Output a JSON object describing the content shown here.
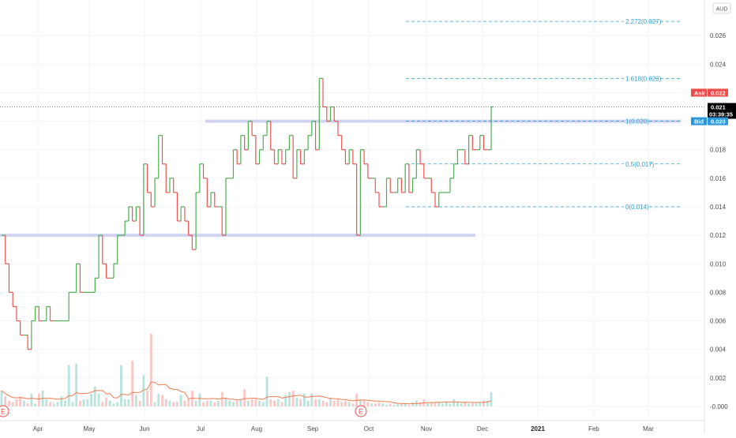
{
  "currency": "AUD",
  "colors": {
    "up": "#4caf50",
    "down": "#ef5350",
    "fib": "#2a9fd6",
    "support": "#c9cdf0",
    "ask": "#ef4b4b",
    "bid": "#2c96dd",
    "last": "#000000",
    "volume_up": "#a8dcd4",
    "volume_down": "#f7b9b7",
    "volume_ma": "#f07c4f",
    "grid": "#f1f3f6"
  },
  "price_tags": {
    "ask_label": "Ask",
    "ask_value": "0.022",
    "last_value": "0.021",
    "countdown": "03:39:35",
    "bid_label": "Bid",
    "bid_value": "0.020"
  },
  "earnings_marker": "E",
  "chart_data": {
    "type": "step-line",
    "ylim": [
      -0.001,
      0.0285
    ],
    "y_ticks": [
      "0.026",
      "0.024",
      "0.022",
      "0.020",
      "0.018",
      "0.016",
      "0.014",
      "0.012",
      "0.010",
      "0.008",
      "0.006",
      "0.004",
      "0.002",
      "-0.000"
    ],
    "x_labels": [
      {
        "label": "Apr",
        "year": false
      },
      {
        "label": "May",
        "year": false
      },
      {
        "label": "Jun",
        "year": false
      },
      {
        "label": "Jul",
        "year": false
      },
      {
        "label": "Aug",
        "year": false
      },
      {
        "label": "Sep",
        "year": false
      },
      {
        "label": "Oct",
        "year": false
      },
      {
        "label": "Nov",
        "year": false
      },
      {
        "label": "Dec",
        "year": false
      },
      {
        "label": "2021",
        "year": true
      },
      {
        "label": "Feb",
        "year": false
      },
      {
        "label": "Mar",
        "year": false
      }
    ],
    "price_series": [
      0.012,
      0.01,
      0.008,
      0.007,
      0.006,
      0.005,
      0.005,
      0.004,
      0.006,
      0.007,
      0.006,
      0.006,
      0.007,
      0.006,
      0.006,
      0.006,
      0.006,
      0.006,
      0.008,
      0.008,
      0.01,
      0.008,
      0.008,
      0.008,
      0.008,
      0.009,
      0.012,
      0.01,
      0.009,
      0.009,
      0.01,
      0.012,
      0.012,
      0.013,
      0.014,
      0.013,
      0.014,
      0.012,
      0.017,
      0.015,
      0.014,
      0.016,
      0.019,
      0.017,
      0.015,
      0.016,
      0.015,
      0.013,
      0.014,
      0.013,
      0.012,
      0.011,
      0.015,
      0.017,
      0.016,
      0.014,
      0.015,
      0.014,
      0.014,
      0.012,
      0.016,
      0.016,
      0.018,
      0.017,
      0.019,
      0.018,
      0.02,
      0.019,
      0.017,
      0.018,
      0.019,
      0.02,
      0.018,
      0.017,
      0.018,
      0.017,
      0.018,
      0.019,
      0.016,
      0.018,
      0.017,
      0.018,
      0.019,
      0.02,
      0.018,
      0.023,
      0.021,
      0.02,
      0.021,
      0.02,
      0.019,
      0.018,
      0.017,
      0.018,
      0.017,
      0.012,
      0.018,
      0.017,
      0.016,
      0.016,
      0.015,
      0.014,
      0.014,
      0.016,
      0.015,
      0.015,
      0.016,
      0.015,
      0.017,
      0.015,
      0.016,
      0.018,
      0.017,
      0.016,
      0.016,
      0.015,
      0.014,
      0.015,
      0.015,
      0.015,
      0.016,
      0.017,
      0.018,
      0.018,
      0.017,
      0.019,
      0.018,
      0.018,
      0.019,
      0.018,
      0.018,
      0.021
    ],
    "volume_series": [
      0.0011,
      0.0007,
      0.0004,
      0.0003,
      0.0005,
      0.0007,
      0.0004,
      0.0002,
      0.0009,
      0.0002,
      0.0009,
      0.0011,
      0.0005,
      0.0003,
      0.0002,
      0.0003,
      0.0007,
      0.0004,
      0.0029,
      0.0003,
      0.003,
      0.0004,
      0.0005,
      0.0005,
      0.0009,
      0.0014,
      0.0009,
      0.0003,
      0.0006,
      0.0004,
      0.0002,
      0.0003,
      0.0029,
      0.0005,
      0.0005,
      0.0032,
      0.0008,
      0.0004,
      0.0022,
      0.0011,
      0.0051,
      0.0003,
      0.0009,
      0.0008,
      0.0005,
      0.0004,
      0.0003,
      0.0003,
      0.0008,
      0.0004,
      0.0005,
      0.0011,
      0.0004,
      0.0009,
      0.0003,
      0.0004,
      0.0004,
      0.0003,
      0.0004,
      0.001,
      0.0006,
      0.0004,
      0.0003,
      0.0004,
      0.0005,
      0.0012,
      0.0004,
      0.0005,
      0.0005,
      0.0004,
      0.0003,
      0.0021,
      0.0005,
      0.0004,
      0.0005,
      0.0003,
      0.0008,
      0.001,
      0.0011,
      0.0006,
      0.0005,
      0.0009,
      0.0004,
      0.0009,
      0.0005,
      0.0005,
      0.0004,
      0.0003,
      0.0006,
      0.0004,
      0.0005,
      0.0003,
      0.0004,
      0.0003,
      0.0002,
      0.0009,
      0.0005,
      0.0004,
      0.0003,
      0.0002,
      0.0002,
      0.0003,
      0.0002,
      0.0001,
      0.0002,
      0.0001,
      0.0002,
      0.0002,
      0.0002,
      0.0001,
      0.0003,
      0.0004,
      0.0003,
      0.0005,
      0.0002,
      0.0003,
      0.0003,
      0.0003,
      0.0002,
      0.0003,
      0.0002,
      0.0005,
      0.0003,
      0.0002,
      0.0003,
      0.0002,
      0.0003,
      0.0002,
      0.0003,
      0.0004,
      0.0004,
      0.001
    ],
    "support_lines": [
      0.02,
      0.012
    ],
    "fibonacci": [
      {
        "ratio": "2.272",
        "value": 0.027,
        "label": "2.272(0.027)"
      },
      {
        "ratio": "1.618",
        "value": 0.023,
        "label": "1.618(0.023)"
      },
      {
        "ratio": "1",
        "value": 0.02,
        "label": "1(0.020)"
      },
      {
        "ratio": "0.5",
        "value": 0.017,
        "label": "0.5(0.017)"
      },
      {
        "ratio": "0",
        "value": 0.014,
        "label": "0(0.014)"
      }
    ],
    "last_price": 0.021,
    "ask": 0.022,
    "bid": 0.02
  }
}
